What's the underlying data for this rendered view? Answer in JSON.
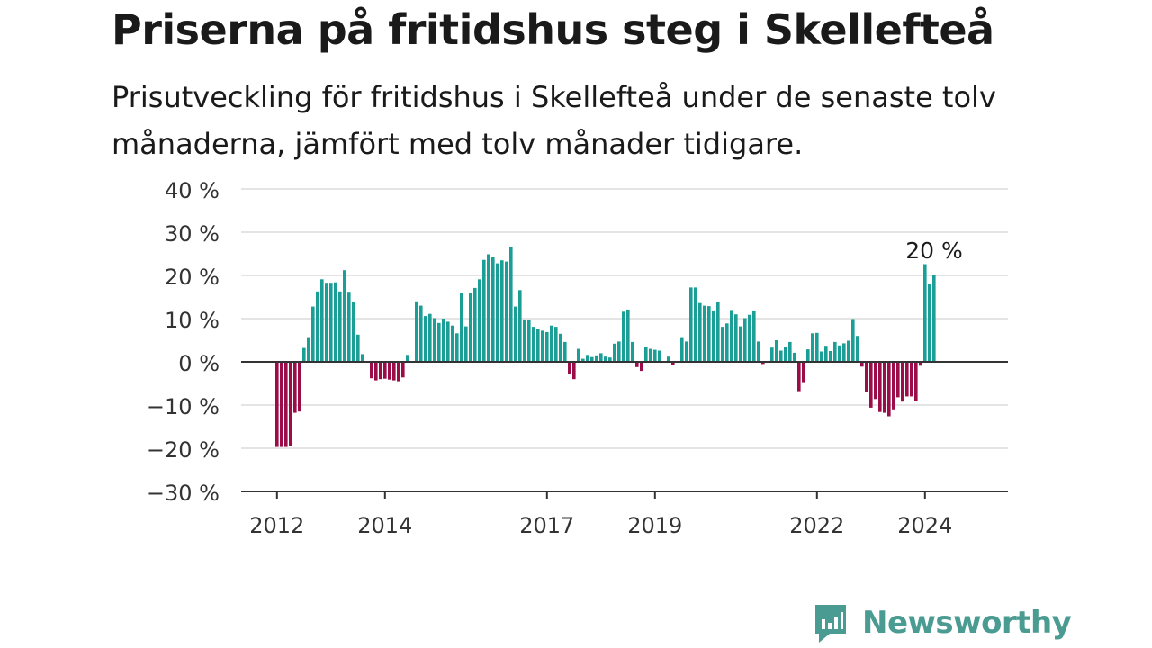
{
  "title": "Priserna på fritidshus steg i Skellefteå",
  "subtitle": "Prisutveckling för fritidshus i Skellefteå under de senaste tolv månaderna, jämfört med tolv månader tidigare.",
  "brand": "Newsworthy",
  "colors": {
    "positive": "#1a9e96",
    "negative": "#9b0d48",
    "axis": "#333333",
    "grid": "#dcdcdc",
    "brand": "#4a9b91"
  },
  "chart_data": {
    "type": "bar",
    "ylim": [
      -30,
      40
    ],
    "yticks": [
      40,
      30,
      20,
      10,
      0,
      -10,
      -20,
      -30
    ],
    "ytick_labels": [
      "40 %",
      "30 %",
      "20 %",
      "10 %",
      "0 %",
      "−10 %",
      "−20 %",
      "−30 %"
    ],
    "xtick_labels": [
      {
        "label": "2012",
        "index": 0
      },
      {
        "label": "2014",
        "index": 24
      },
      {
        "label": "2017",
        "index": 60
      },
      {
        "label": "2019",
        "index": 84
      },
      {
        "label": "2022",
        "index": 120
      },
      {
        "label": "2024",
        "index": 144
      }
    ],
    "annotation": "20 %",
    "x_start": "2012-01",
    "values": [
      -19.7,
      -19.7,
      -19.7,
      -19.5,
      -11.8,
      -11.5,
      3.2,
      5.7,
      12.8,
      16.3,
      19.1,
      18.3,
      18.3,
      18.4,
      16.3,
      21.2,
      16.2,
      13.8,
      6.3,
      1.8,
      0,
      -3.8,
      -4.3,
      -4,
      -3.9,
      -4.1,
      -4.3,
      -4.5,
      -3.6,
      1.6,
      0,
      14,
      13,
      10.6,
      11.1,
      10.1,
      9,
      10,
      9.3,
      8.4,
      6.6,
      15.9,
      8.2,
      15.9,
      17.1,
      19.1,
      23.6,
      24.9,
      24.3,
      22.8,
      23.5,
      23.2,
      26.5,
      12.8,
      16.6,
      9.8,
      9.8,
      8.1,
      7.6,
      7.2,
      6.9,
      8.4,
      8.1,
      6.5,
      4.6,
      -2.8,
      -4,
      3,
      0.7,
      1.6,
      1.1,
      1.5,
      2,
      1.2,
      1,
      4.2,
      4.7,
      11.6,
      12.1,
      4.6,
      -1.2,
      -2.1,
      3.4,
      3,
      2.8,
      2.6,
      0,
      1.2,
      -0.8,
      0,
      5.7,
      4.7,
      17.2,
      17.2,
      13.6,
      13,
      12.9,
      11.9,
      13.9,
      8.1,
      8.9,
      12,
      11,
      8.2,
      10.1,
      10.9,
      11.9,
      4.7,
      -0.5,
      0,
      3.3,
      5,
      2.6,
      3.5,
      4.6,
      2.1,
      -6.8,
      -4.7,
      2.9,
      6.6,
      6.7,
      2.4,
      3.7,
      2.5,
      4.6,
      3.8,
      4.3,
      4.9,
      9.9,
      6,
      -1.1,
      -7,
      -10.6,
      -8.6,
      -11.6,
      -11.8,
      -12.6,
      -11,
      -8.2,
      -9.2,
      -8,
      -8,
      -9,
      -0.9,
      22.6,
      18.1,
      20.1
    ],
    "positive_extras": {}
  }
}
